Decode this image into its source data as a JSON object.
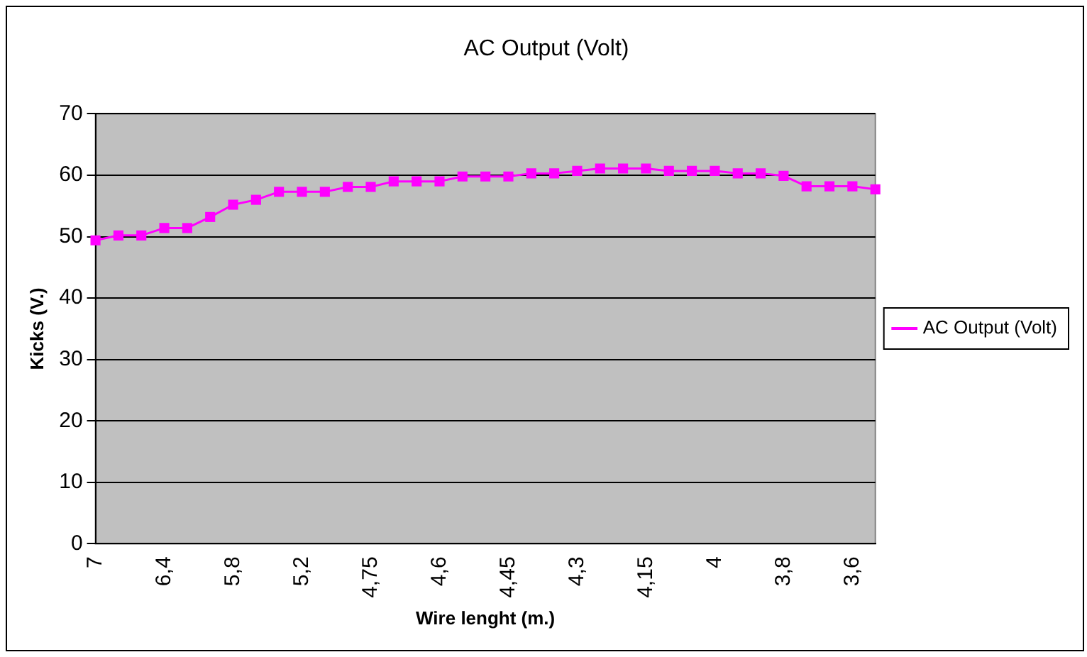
{
  "chart_data": {
    "type": "line",
    "title": "AC Output (Volt)",
    "xlabel": "Wire lenght (m.)",
    "ylabel": "Kicks (V.)",
    "categories": [
      "7",
      null,
      null,
      "6,4",
      null,
      null,
      "5,8",
      null,
      null,
      "5,2",
      null,
      null,
      "4,75",
      null,
      null,
      "4,6",
      null,
      null,
      "4,45",
      null,
      null,
      "4,3",
      null,
      null,
      "4,15",
      null,
      null,
      "4",
      null,
      null,
      "3,8",
      null,
      null,
      "3,6",
      null
    ],
    "series": [
      {
        "name": "AC Output (Volt)",
        "color": "#ff00ff",
        "values": [
          49.4,
          50.2,
          50.2,
          51.4,
          51.4,
          53.2,
          55.2,
          56,
          57.3,
          57.3,
          57.3,
          58.1,
          58.1,
          59,
          59,
          59,
          59.8,
          59.8,
          59.8,
          60.3,
          60.3,
          60.7,
          61.1,
          61.1,
          61.1,
          60.7,
          60.7,
          60.7,
          60.3,
          60.3,
          59.9,
          58.2,
          58.2,
          58.2,
          57.7
        ]
      }
    ],
    "ylim": [
      0,
      70
    ],
    "yticks": [
      0,
      10,
      20,
      30,
      40,
      50,
      60,
      70
    ],
    "grid": "y",
    "legend": "right",
    "marker": "square",
    "line_style": "solid"
  }
}
